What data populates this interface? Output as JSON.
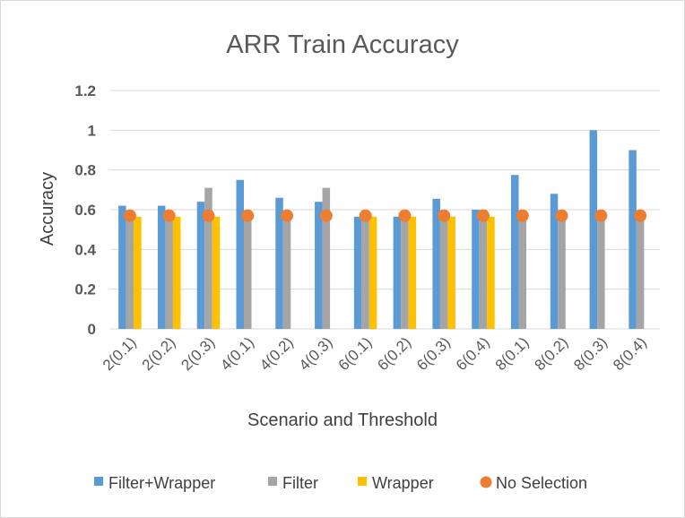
{
  "chart_data": {
    "type": "bar",
    "title": "ARR Train Accuracy",
    "xlabel": "Scenario and Threshold",
    "ylabel": "Accuracy",
    "ylim": [
      0,
      1.2
    ],
    "yticks": [
      "0",
      "0.2",
      "0.4",
      "0.6",
      "0.8",
      "1",
      "1.2"
    ],
    "grid": true,
    "legend_position": "bottom",
    "categories": [
      "2(0.1)",
      "2(0.2)",
      "2(0.3)",
      "4(0.1)",
      "4(0.2)",
      "4(0.3)",
      "6(0.1)",
      "6(0.2)",
      "6(0.3)",
      "6(0.4)",
      "8(0.1)",
      "8(0.2)",
      "8(0.3)",
      "8(0.4)"
    ],
    "series": [
      {
        "name": "Filter+Wrapper",
        "kind": "bar",
        "color": "#5b9bd5",
        "values": [
          0.62,
          0.62,
          0.64,
          0.75,
          0.66,
          0.64,
          0.565,
          0.565,
          0.655,
          0.6,
          0.775,
          0.68,
          1.0,
          0.9
        ]
      },
      {
        "name": "Filter",
        "kind": "bar",
        "color": "#a5a5a5",
        "values": [
          0.565,
          0.565,
          0.71,
          0.565,
          0.565,
          0.71,
          0.565,
          0.565,
          0.565,
          0.6,
          0.565,
          0.565,
          0.565,
          0.565
        ]
      },
      {
        "name": "Wrapper",
        "kind": "bar",
        "color": "#ffc000",
        "values": [
          0.565,
          0.565,
          0.565,
          null,
          null,
          null,
          0.565,
          0.565,
          0.565,
          0.565,
          null,
          null,
          null,
          null
        ]
      },
      {
        "name": "No Selection",
        "kind": "marker",
        "color": "#ed7d31",
        "values": [
          0.57,
          0.57,
          0.57,
          0.57,
          0.57,
          0.57,
          0.57,
          0.57,
          0.57,
          0.57,
          0.57,
          0.57,
          0.57,
          0.57
        ]
      }
    ]
  }
}
